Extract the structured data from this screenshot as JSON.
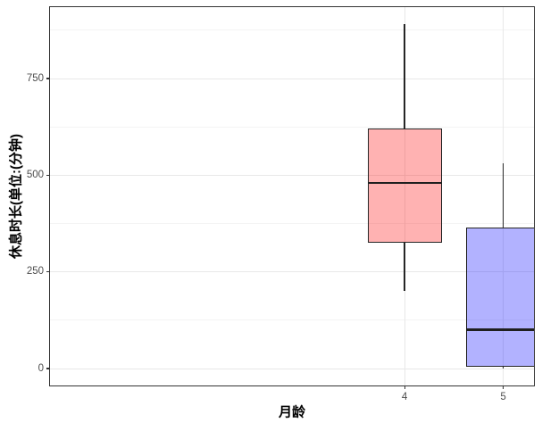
{
  "figure": {
    "background": "#ffffff",
    "panel_border_color": "#333333",
    "grid_major_color": "#e8e8e8",
    "grid_minor_color": "#f4f4f4",
    "tick_color": "#333333",
    "tick_label_color": "#4d4d4d",
    "axis_title_color": "#000000"
  },
  "chart_data": {
    "type": "boxplot",
    "title": "",
    "xlabel": "月龄",
    "ylabel": "休息时长(单位:(分钟)",
    "grid": true,
    "legend": "none",
    "xlim": [
      0.398,
      5.32
    ],
    "ylim": [
      -46,
      937
    ],
    "x_major_breaks": [
      4,
      5
    ],
    "y_major_breaks": [
      0,
      250,
      500,
      750
    ],
    "y_minor_breaks": [
      125,
      375,
      625,
      875
    ],
    "x_tick_labels": [
      "4",
      "5"
    ],
    "y_tick_labels": [
      "0",
      "250",
      "500",
      "750"
    ],
    "box_width": 0.75,
    "series": [
      {
        "name": "4",
        "x": 4,
        "min": 200,
        "q1": 325,
        "median": 480,
        "q3": 620,
        "max": 890,
        "fill": "rgba(255,0,0,0.3)",
        "stroke": "#262626"
      },
      {
        "name": "5",
        "x": 5,
        "min": 0,
        "q1": 5,
        "median": 100,
        "q3": 365,
        "max": 530,
        "fill": "rgba(0,0,255,0.3)",
        "stroke": "#262626"
      }
    ]
  }
}
